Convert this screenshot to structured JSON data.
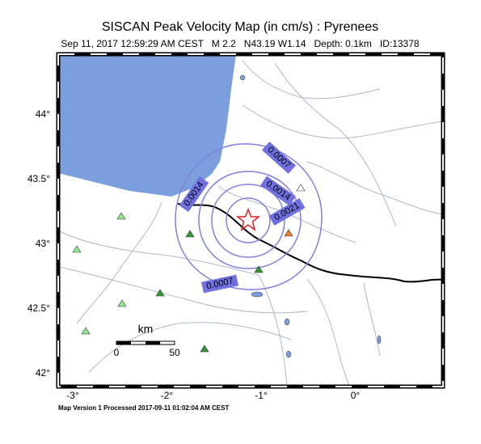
{
  "header": {
    "title": "SISCAN Peak Velocity Map (in cm/s) : Pyrenees",
    "subtitle": "Sep 11, 2017 12:59:29 AM CEST   M 2.2   N43.19 W1.14   Depth: 0.1km   ID:13378"
  },
  "lat_ticks": [
    {
      "value": 44,
      "label": "44°"
    },
    {
      "value": 43.5,
      "label": "43.5°"
    },
    {
      "value": 43,
      "label": "43°"
    },
    {
      "value": 42.5,
      "label": "42.5°"
    },
    {
      "value": 42,
      "label": "42°"
    }
  ],
  "lon_ticks": [
    {
      "value": -3,
      "label": "-3°"
    },
    {
      "value": -2,
      "label": "-2°"
    },
    {
      "value": -1,
      "label": "-1°"
    },
    {
      "value": 0,
      "label": "0°"
    }
  ],
  "contour_labels": [
    "0.0007",
    "0.0014",
    "0.0014",
    "0.0021",
    "0.0007"
  ],
  "scale": {
    "title": "km",
    "ticks": [
      "0",
      "50"
    ]
  },
  "footer": "Map Version 1 Processed 2017-09-11 01:02:04 AM CEST"
}
